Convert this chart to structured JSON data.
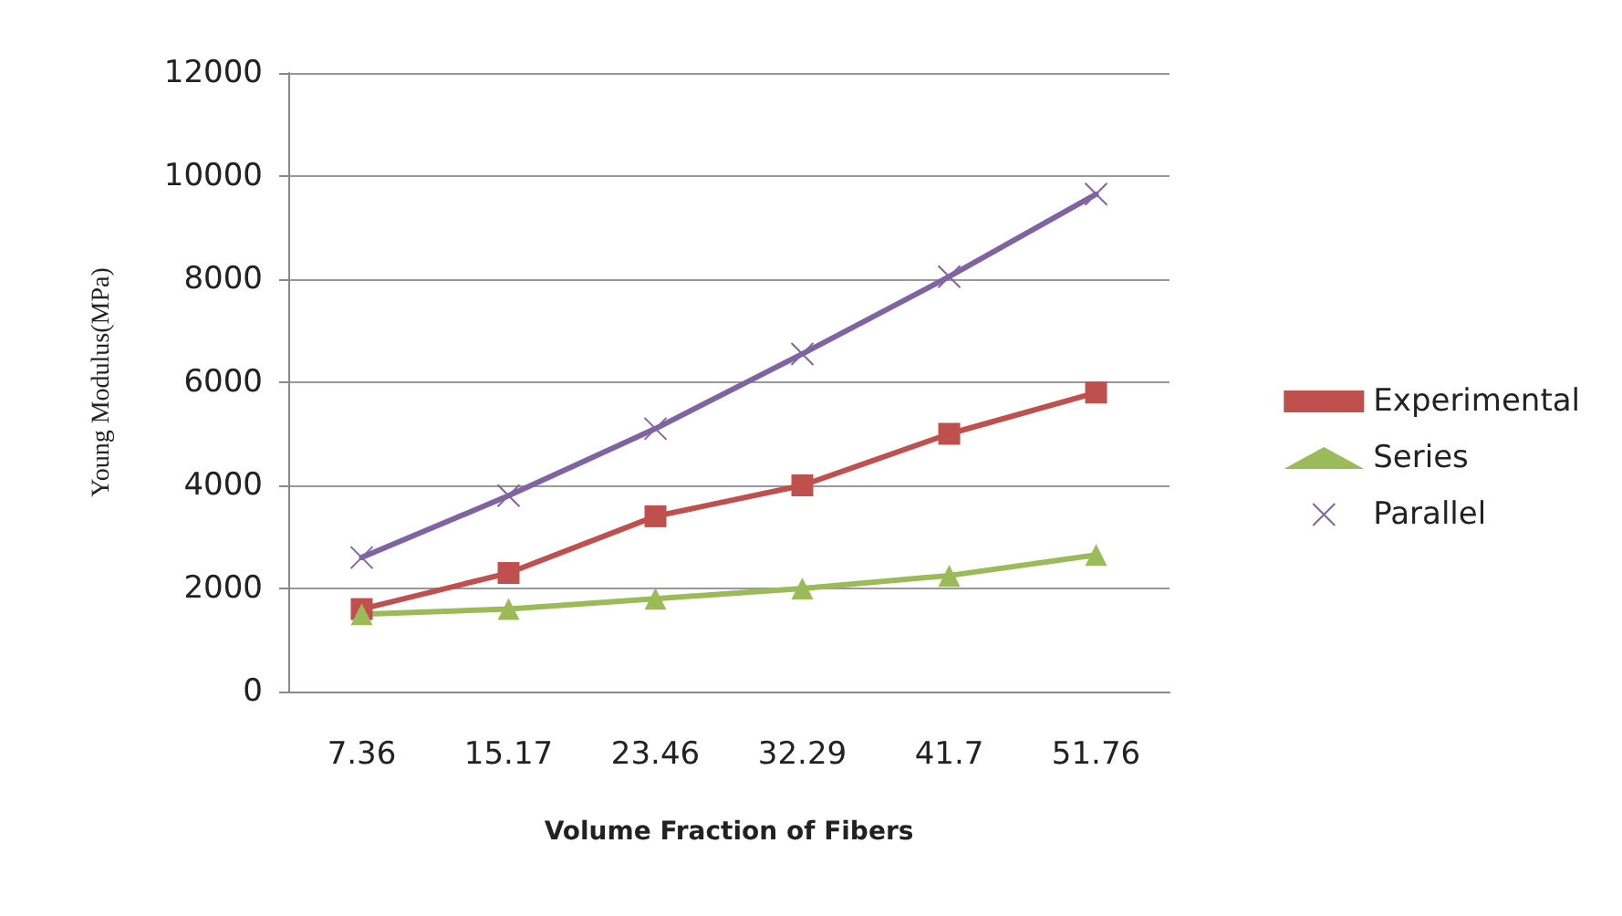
{
  "chart_data": {
    "type": "line",
    "xlabel": "Volume Fraction of Fibers",
    "ylabel": "Young Modulus(MPa)",
    "categories": [
      "7.36",
      "15.17",
      "23.46",
      "32.29",
      "41.7",
      "51.76"
    ],
    "series": [
      {
        "name": "Experimental",
        "color": "#c0504d",
        "marker": "square",
        "values": [
          1600,
          2300,
          3400,
          4000,
          5000,
          5800
        ]
      },
      {
        "name": "Series",
        "color": "#9bbb59",
        "marker": "triangle",
        "values": [
          1500,
          1600,
          1800,
          2000,
          2250,
          2650
        ]
      },
      {
        "name": "Parallel",
        "color": "#8064a2",
        "marker": "cross",
        "values": [
          2600,
          3800,
          5100,
          6550,
          8050,
          9650
        ]
      }
    ],
    "ylim": [
      0,
      12000
    ],
    "yticks": [
      0,
      2000,
      4000,
      6000,
      8000,
      10000,
      12000
    ],
    "grid": "y",
    "legend": "right"
  }
}
